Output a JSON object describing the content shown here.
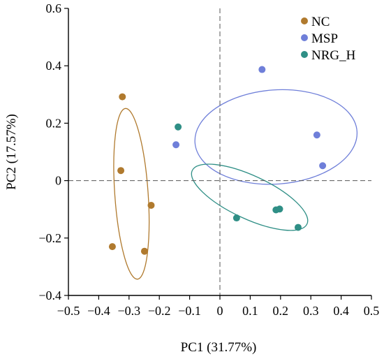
{
  "chart_data": {
    "type": "scatter",
    "xlabel": "PC1 (31.77%)",
    "ylabel": "PC2 (17.57%)",
    "xlim": [
      -0.5,
      0.5
    ],
    "ylim": [
      -0.4,
      0.6
    ],
    "xticks": [
      -0.5,
      -0.4,
      -0.3,
      -0.2,
      -0.1,
      0,
      0.1,
      0.2,
      0.3,
      0.4,
      0.5
    ],
    "xtick_labels": [
      "−0.5",
      "−0.4",
      "−0.3",
      "−0.2",
      "−0.1",
      "0",
      "0.1",
      "0.2",
      "0.3",
      "0.4",
      "0.5"
    ],
    "yticks": [
      -0.4,
      -0.2,
      0,
      0.2,
      0.4,
      0.6
    ],
    "ytick_labels": [
      "−0.4",
      "−0.2",
      "0",
      "0.2",
      "0.4",
      "0.6"
    ],
    "zero_lines": true,
    "grid": false,
    "legend_position": "top-right",
    "series": [
      {
        "name": "NC",
        "color": "#b07a2e",
        "x": [
          -0.322,
          -0.327,
          -0.227,
          -0.355,
          -0.249
        ],
        "y": [
          0.292,
          0.035,
          -0.086,
          -0.23,
          -0.246
        ],
        "ellipse": {
          "cx": -0.292,
          "cy": -0.046,
          "rx": 0.055,
          "ry": 0.298,
          "angle_deg": 4
        }
      },
      {
        "name": "MSP",
        "color": "#6f7fd9",
        "x": [
          0.139,
          0.32,
          0.339,
          -0.145
        ],
        "y": [
          0.387,
          0.159,
          0.052,
          0.125
        ],
        "ellipse": {
          "cx": 0.185,
          "cy": 0.152,
          "rx": 0.268,
          "ry": 0.164,
          "angle_deg": 4
        }
      },
      {
        "name": "NRG_H",
        "color": "#2f8f86",
        "x": [
          -0.138,
          0.185,
          0.197,
          0.055,
          0.258
        ],
        "y": [
          0.187,
          -0.102,
          -0.099,
          -0.13,
          -0.163
        ],
        "ellipse": {
          "cx": 0.098,
          "cy": -0.058,
          "rx": 0.209,
          "ry": 0.075,
          "angle_deg": -25
        }
      }
    ]
  }
}
